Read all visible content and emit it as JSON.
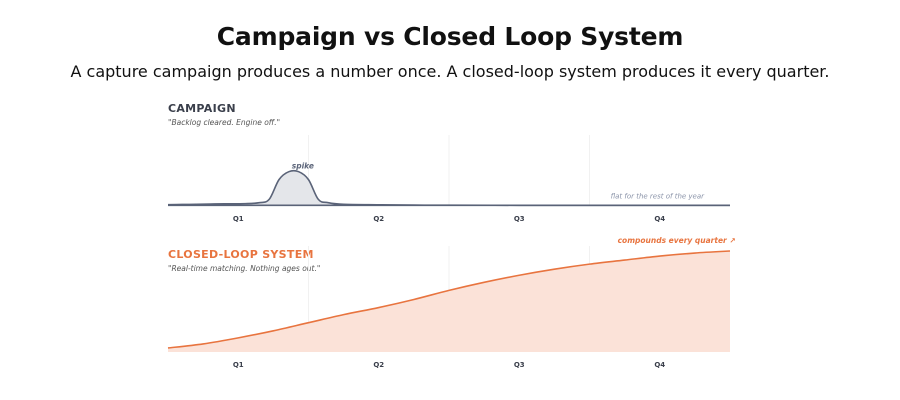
{
  "page": {
    "title": "Campaign vs Closed Loop System",
    "subtitle": "A capture campaign produces a number once. A closed-loop system produces it every quarter."
  },
  "colors": {
    "campaign_line": "#5a6378",
    "campaign_fill": "#e4e6ea",
    "campaign_title": "#3a3f4b",
    "closed_loop_line": "#e8743f",
    "closed_loop_fill": "#fbe2d8",
    "closed_loop_title": "#e8743f",
    "annotation_muted": "#8a93a8",
    "tick_label": "#3a3f4b",
    "quote": "#555555"
  },
  "chart_data": [
    {
      "type": "area",
      "title": "CAMPAIGN",
      "subtitle": "\"Backlog cleared. Engine off.\"",
      "categories": [
        "Q1",
        "Q2",
        "Q3",
        "Q4"
      ],
      "x": [
        0,
        0.1,
        0.2,
        0.3,
        0.4,
        0.55,
        0.65,
        0.72,
        0.79,
        0.86,
        0.93,
        1.0,
        1.07,
        1.14,
        1.25,
        1.5,
        1.75,
        2.0,
        2.5,
        3.0,
        3.5,
        4.0
      ],
      "y": [
        2,
        2.3,
        2.6,
        3,
        3.3,
        3.6,
        5,
        10,
        40,
        52,
        52,
        40,
        10,
        5,
        2.5,
        1.8,
        1.4,
        1.2,
        1.1,
        1.0,
        1.0,
        1.0
      ],
      "xlim": [
        0,
        4
      ],
      "ylim": [
        0,
        100
      ],
      "annotations": [
        {
          "text": "spike",
          "x": 0.96,
          "y": 57
        },
        {
          "text": "flat for the rest of the year",
          "x": 3.15,
          "y": 11
        }
      ]
    },
    {
      "type": "area",
      "title": "CLOSED-LOOP SYSTEM",
      "subtitle": "\"Real-time matching. Nothing ages out.\"",
      "categories": [
        "Q1",
        "Q2",
        "Q3",
        "Q4"
      ],
      "x": [
        0,
        0.25,
        0.5,
        0.75,
        1.0,
        1.25,
        1.5,
        1.75,
        2.0,
        2.25,
        2.5,
        2.75,
        3.0,
        3.25,
        3.5,
        3.75,
        4.0
      ],
      "y": [
        4,
        8,
        14,
        21,
        29,
        37,
        44,
        52,
        61,
        69,
        76,
        82,
        87,
        91,
        95,
        98,
        100
      ],
      "xlim": [
        0,
        4
      ],
      "ylim": [
        0,
        100
      ],
      "annotations": [
        {
          "text": "compounds every quarter ↗",
          "x": 3.2,
          "y": 108
        }
      ]
    }
  ]
}
